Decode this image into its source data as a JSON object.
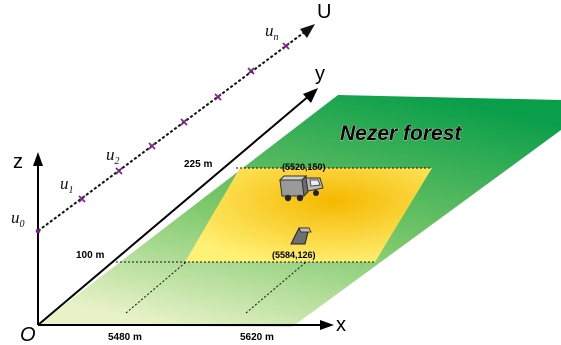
{
  "diagram": {
    "axes": {
      "x_label": "x",
      "y_label": "y",
      "z_label": "z",
      "u_label": "U",
      "origin_label": "O"
    },
    "region_label": "Nezer forest",
    "x_distances": [
      "5480 m",
      "5620 m"
    ],
    "y_distances": [
      "100 m",
      "225 m"
    ],
    "markers": [
      {
        "label": "(5520,150)",
        "icon": "truck-icon"
      },
      {
        "label": "(5584,126)",
        "icon": "sensor-icon"
      }
    ],
    "u_points": [
      {
        "base": "u",
        "sub": "0"
      },
      {
        "base": "u",
        "sub": "1"
      },
      {
        "base": "u",
        "sub": "2"
      },
      {
        "base": "u",
        "sub": "n"
      }
    ],
    "colors": {
      "forest_far": "#0a9e4a",
      "forest_near": "#e8f2c8",
      "zone_inner": "#f5b800",
      "zone_outer": "#fff176",
      "u_marker": "#7a1f8a"
    }
  }
}
